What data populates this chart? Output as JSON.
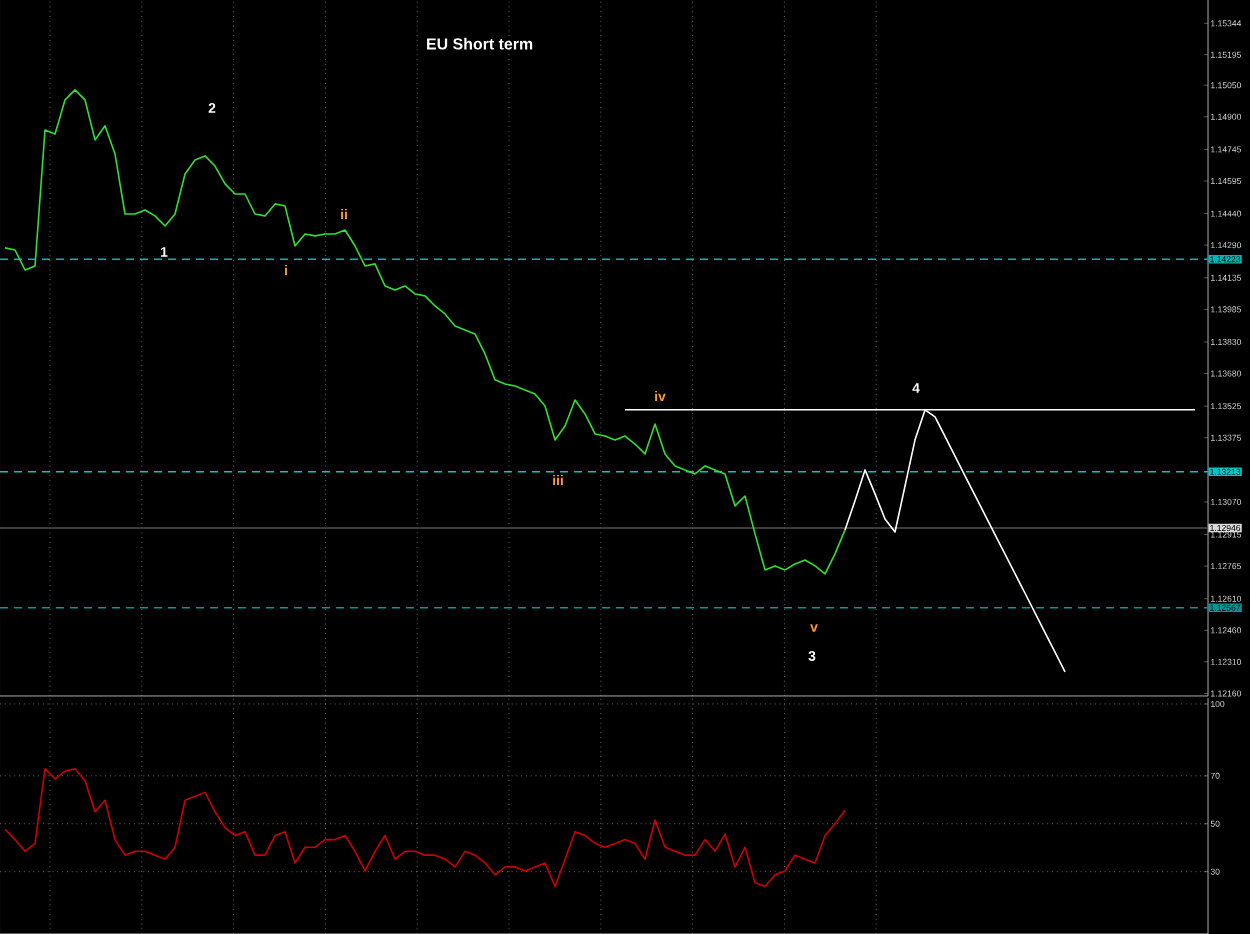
{
  "chart_data": [
    {
      "type": "line",
      "title": "EU Short term",
      "tick_labels": "y",
      "grid": "x",
      "categories": [
        null,
        null,
        null,
        null,
        null,
        null,
        null,
        null,
        null,
        null,
        null,
        null,
        null,
        null,
        null,
        null,
        null,
        null,
        null,
        null,
        null,
        null,
        null,
        null,
        null,
        null,
        null,
        null,
        null,
        null,
        null,
        null,
        null,
        null,
        null,
        null,
        null,
        null,
        null,
        null,
        null,
        null,
        null,
        null,
        null,
        null,
        null,
        null,
        null,
        null,
        null,
        null,
        null,
        null,
        null,
        null,
        null,
        null,
        null,
        null,
        null,
        null,
        null,
        null,
        null,
        null,
        null,
        null,
        null,
        null,
        null,
        null,
        null,
        null,
        null,
        null,
        null,
        null,
        null,
        null,
        null,
        null,
        null,
        null,
        null,
        null,
        null,
        null,
        null,
        null,
        null,
        null,
        null,
        null,
        null,
        null,
        null,
        null,
        null,
        null,
        null,
        null,
        null,
        null,
        null,
        null,
        null,
        null,
        null,
        null,
        null,
        null,
        null,
        null,
        null,
        null,
        null,
        null,
        null,
        null
      ],
      "series": [
        {
          "color": "#33dd33",
          "values": [
            1.14277,
            1.14267,
            1.14172,
            1.14191,
            1.14837,
            1.14818,
            1.1498,
            1.15028,
            1.1498,
            1.1479,
            1.14857,
            1.14723,
            1.14438,
            1.14438,
            1.14457,
            1.14429,
            1.14381,
            1.14438,
            1.14628,
            1.14695,
            1.14714,
            1.14666,
            1.14581,
            1.14533,
            1.14533,
            1.14438,
            1.14429,
            1.14486,
            1.14476,
            1.14286,
            1.14343,
            1.14334,
            1.14343,
            1.14343,
            1.14362,
            1.14286,
            1.14191,
            1.14201,
            1.14096,
            1.14077,
            1.14096,
            1.14058,
            1.14049,
            1.14001,
            1.13963,
            1.13906,
            1.13887,
            1.13868,
            1.13773,
            1.1365,
            1.1363,
            1.13621,
            1.13602,
            1.13583,
            1.13526,
            1.13364,
            1.13431,
            1.13554,
            1.13488,
            1.13393,
            1.13383,
            1.13364,
            1.13383,
            1.13345,
            1.13298,
            1.1344,
            1.13298,
            1.13241,
            1.13222,
            1.13203,
            1.13241,
            1.13222,
            1.13203,
            1.13051,
            1.13098,
            1.12918,
            1.12747,
            1.12766,
            1.12747,
            1.12775,
            1.12794,
            1.12766,
            1.12728,
            1.12823,
            1.12937,
            null,
            null,
            null,
            null,
            null,
            null,
            null,
            null,
            null,
            null,
            null,
            null,
            null,
            null,
            null,
            null,
            null,
            null,
            null,
            null,
            null,
            null,
            null,
            null,
            null,
            null,
            null,
            null,
            null,
            null,
            null,
            null,
            null,
            null,
            null
          ]
        },
        {
          "color": "#ffffff",
          "values": [
            null,
            null,
            null,
            null,
            null,
            null,
            null,
            null,
            null,
            null,
            null,
            null,
            null,
            null,
            null,
            null,
            null,
            null,
            null,
            null,
            null,
            null,
            null,
            null,
            null,
            null,
            null,
            null,
            null,
            null,
            null,
            null,
            null,
            null,
            null,
            null,
            null,
            null,
            null,
            null,
            null,
            null,
            null,
            null,
            null,
            null,
            null,
            null,
            null,
            null,
            null,
            null,
            null,
            null,
            null,
            null,
            null,
            null,
            null,
            null,
            null,
            null,
            null,
            null,
            null,
            null,
            null,
            null,
            null,
            null,
            null,
            null,
            null,
            null,
            null,
            null,
            null,
            null,
            null,
            null,
            null,
            null,
            null,
            null,
            1.12937,
            1.13076,
            1.13222,
            1.13108,
            1.12989,
            1.12927,
            1.13146,
            1.13365,
            1.13507,
            1.13474,
            1.13381,
            1.13288,
            1.13194,
            1.13101,
            1.13008,
            1.12915,
            1.12822,
            1.12729,
            1.12636,
            1.12543,
            1.12449,
            1.12356,
            1.12263,
            null,
            null,
            null,
            null,
            null,
            null,
            null,
            null,
            null,
            null,
            null,
            null,
            null
          ]
        },
        {
          "color": "#ffffff",
          "values": [
            null,
            null,
            null,
            null,
            null,
            null,
            null,
            null,
            null,
            null,
            null,
            null,
            null,
            null,
            null,
            null,
            null,
            null,
            null,
            null,
            null,
            null,
            null,
            null,
            null,
            null,
            null,
            null,
            null,
            null,
            null,
            null,
            null,
            null,
            null,
            null,
            null,
            null,
            null,
            null,
            null,
            null,
            null,
            null,
            null,
            null,
            null,
            null,
            null,
            null,
            null,
            null,
            null,
            null,
            null,
            null,
            null,
            null,
            null,
            null,
            null,
            null,
            1.13508,
            1.13508,
            1.13508,
            1.13508,
            1.13508,
            1.13508,
            1.13508,
            1.13508,
            1.13508,
            1.13508,
            1.13508,
            1.13508,
            1.13508,
            1.13508,
            1.13508,
            1.13508,
            1.13508,
            1.13508,
            1.13508,
            1.13508,
            1.13508,
            1.13508,
            1.13508,
            1.13508,
            1.13508,
            1.13508,
            1.13508,
            1.13508,
            1.13508,
            1.13508,
            1.13508,
            1.13508,
            1.13508,
            1.13508,
            1.13508,
            1.13508,
            1.13508,
            1.13508,
            1.13508,
            1.13508,
            1.13508,
            1.13508,
            1.13508,
            1.13508,
            1.13508,
            1.13508,
            1.13508,
            1.13508,
            1.13508,
            1.13508,
            1.13508,
            1.13508,
            1.13508,
            1.13508,
            1.13508,
            1.13508,
            1.13508,
            1.13508
          ]
        }
      ],
      "ylim": [
        1.12148,
        1.15455
      ],
      "yticks": [
        1.15344,
        1.15195,
        {
          "value": 1.1505,
          "label": "1.15050"
        },
        {
          "value": 1.149,
          "label": "1.14900"
        },
        1.14745,
        1.14595,
        {
          "value": 1.1444,
          "label": "1.14440"
        },
        {
          "value": 1.1429,
          "label": "1.14290"
        },
        1.14135,
        1.13985,
        {
          "value": 1.1383,
          "label": "1.13830"
        },
        {
          "value": 1.1368,
          "label": "1.13680"
        },
        1.13525,
        1.13375,
        {
          "value": 1.1307,
          "label": "1.13070"
        },
        1.12915,
        1.12765,
        {
          "value": 1.1261,
          "label": "1.12610"
        },
        {
          "value": 1.1246,
          "label": "1.12460"
        },
        {
          "value": 1.1231,
          "label": "1.12310"
        },
        {
          "value": 1.1216,
          "label": "1.12160"
        }
      ],
      "ref_lines": [
        {
          "axis": "y",
          "value": 1.14223,
          "label": "1.14223",
          "color": "#00b5b5",
          "line_style": "dashed"
        },
        {
          "axis": "y",
          "value": 1.13213,
          "label": "1.13213",
          "color": "#00c8c8",
          "line_style": "dashed"
        },
        {
          "axis": "y",
          "value": 1.12946,
          "label": "1.12946",
          "color": "#505050",
          "line_style": "solid"
        },
        {
          "axis": "y",
          "value": 1.12567,
          "label": "1.12567",
          "color": "#009999",
          "line_style": "dashed"
        }
      ],
      "annotations": [
        "1",
        "2",
        "i",
        "ii",
        "iii",
        "iv",
        "v",
        "3",
        "4"
      ]
    },
    {
      "type": "line",
      "tick_labels": "y",
      "grid": true,
      "categories": [
        null,
        null,
        null,
        null,
        null,
        null,
        null,
        null,
        null,
        null,
        null,
        null,
        null,
        null,
        null,
        null,
        null,
        null,
        null,
        null,
        null,
        null,
        null,
        null,
        null,
        null,
        null,
        null,
        null,
        null,
        null,
        null,
        null,
        null,
        null,
        null,
        null,
        null,
        null,
        null,
        null,
        null,
        null,
        null,
        null,
        null,
        null,
        null,
        null,
        null,
        null,
        null,
        null,
        null,
        null,
        null,
        null,
        null,
        null,
        null,
        null,
        null,
        null,
        null,
        null,
        null,
        null,
        null,
        null,
        null,
        null,
        null,
        null,
        null,
        null,
        null,
        null,
        null,
        null,
        null,
        null,
        null,
        null,
        null,
        null,
        null,
        null,
        null,
        null,
        null,
        null,
        null,
        null,
        null,
        null,
        null,
        null,
        null,
        null,
        null,
        null,
        null,
        null,
        null,
        null,
        null,
        null,
        null,
        null,
        null,
        null,
        null,
        null,
        null,
        null,
        null,
        null,
        null,
        null,
        null
      ],
      "series": [
        {
          "color": "#cc0000",
          "values": [
            47.7,
            43.4,
            38.5,
            41.8,
            73,
            68.7,
            72,
            73,
            68,
            55,
            59.8,
            43.4,
            36.9,
            38.5,
            38.5,
            36.9,
            35.2,
            40.2,
            59.8,
            61.5,
            63.1,
            55,
            48.4,
            45.1,
            46.7,
            36.9,
            36.9,
            45.1,
            46.7,
            33.6,
            40.2,
            40.2,
            43.4,
            43.4,
            45.1,
            38.5,
            30.3,
            38.5,
            45.1,
            35.2,
            38.5,
            38.5,
            36.9,
            36.9,
            35.2,
            32,
            38.5,
            36.9,
            33.6,
            28.7,
            32,
            32,
            30.3,
            32,
            33.6,
            23.8,
            35.2,
            46.7,
            45.1,
            41.8,
            40.2,
            41.8,
            43.4,
            41.8,
            35.2,
            51.6,
            40.2,
            38.5,
            36.9,
            36.9,
            43.4,
            38.5,
            45.7,
            32,
            40.2,
            25.4,
            23.8,
            28.7,
            30.3,
            36.9,
            35.2,
            33.6,
            45.1,
            50,
            55.6,
            null,
            null,
            null,
            null,
            null,
            null,
            null,
            null,
            null,
            null,
            null,
            null,
            null,
            null,
            null,
            null,
            null,
            null,
            null,
            null,
            null,
            null,
            null,
            null,
            null,
            null,
            null,
            null,
            null,
            null,
            null,
            null,
            null,
            null,
            null
          ]
        }
      ],
      "ylim": [
        4,
        102.5
      ],
      "yticks": [
        100,
        70,
        50,
        30
      ]
    }
  ]
}
